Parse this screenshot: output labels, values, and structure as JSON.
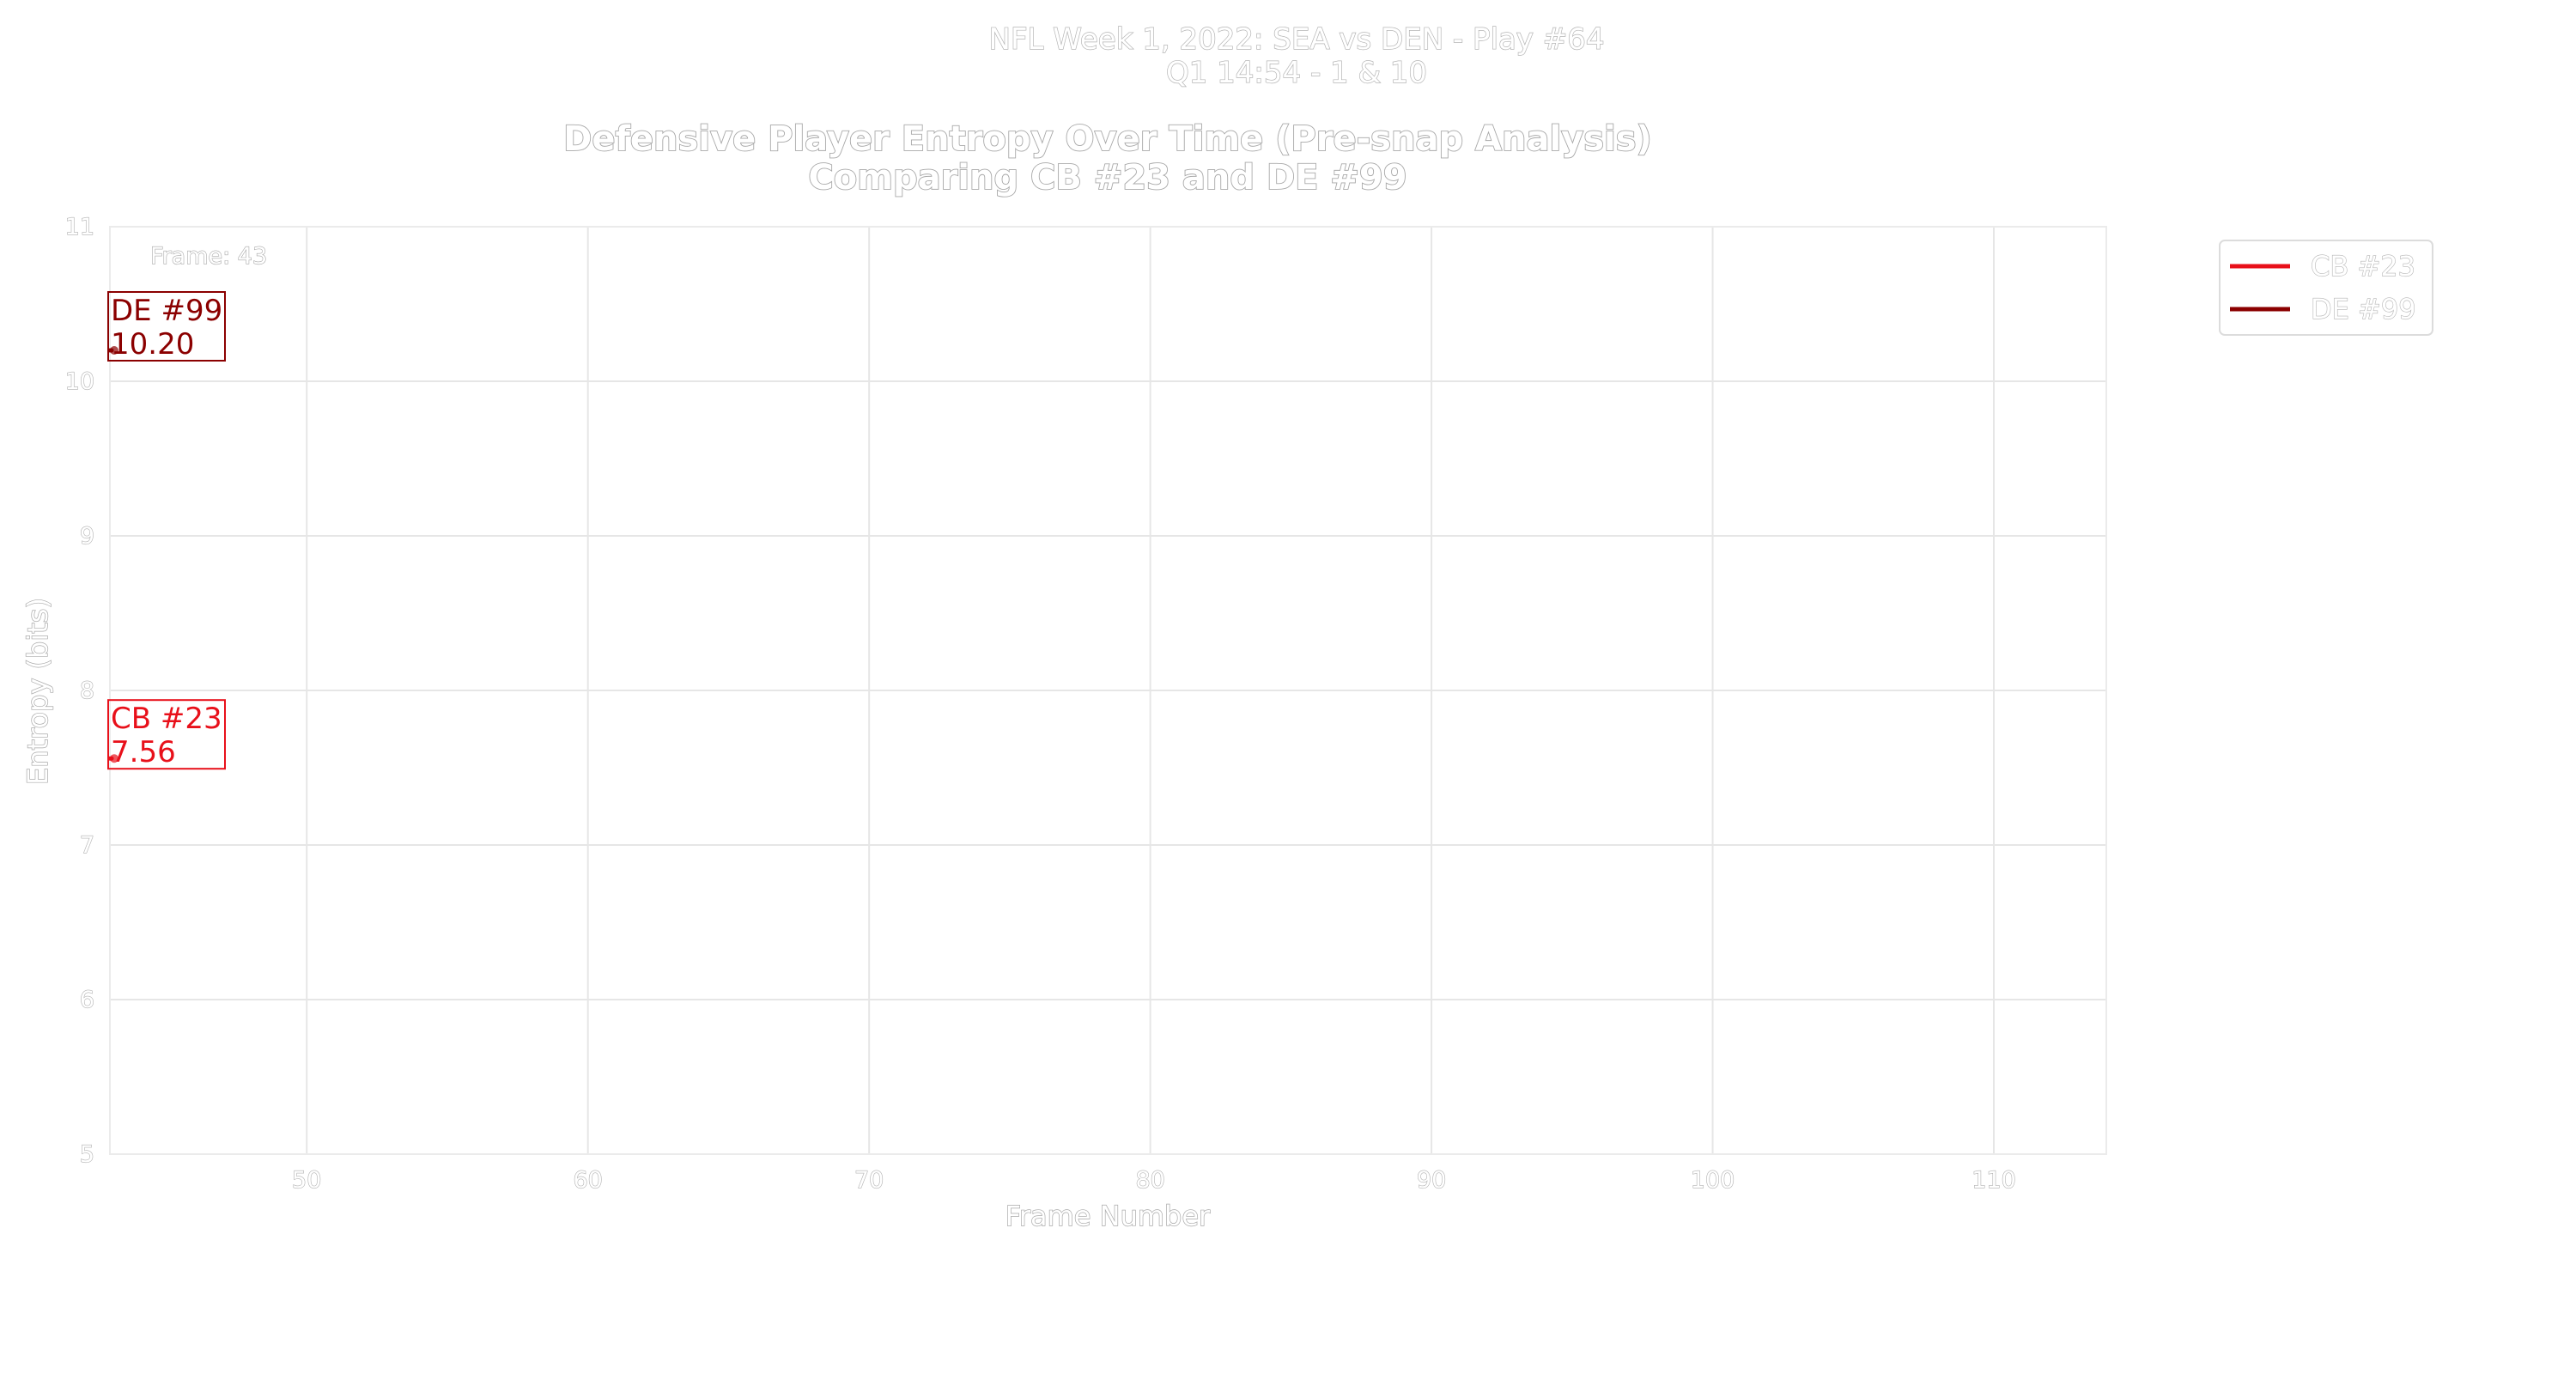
{
  "suptitle": {
    "line1": "NFL Week 1, 2022: SEA vs DEN - Play #64",
    "line2": "Q1 14:54 - 1 & 10"
  },
  "colors": {
    "cb23": "#e8101a",
    "de99": "#8b0000",
    "background": "#ffffff"
  },
  "chart_data": {
    "type": "line",
    "title": "Defensive Player Entropy Over Time (Pre-snap Analysis)",
    "subtitle": "Comparing CB #23 and DE #99",
    "xlabel": "Frame Number",
    "ylabel": "Entropy (bits)",
    "xlim": [
      43,
      114
    ],
    "ylim": [
      5,
      11
    ],
    "xticks": [
      50,
      60,
      70,
      80,
      90,
      100,
      110
    ],
    "yticks": [
      5,
      6,
      7,
      8,
      9,
      10,
      11
    ],
    "grid": true,
    "legend_position": "outside-top-right",
    "frame_annotation": "Frame: 43",
    "series": [
      {
        "name": "CB #23",
        "color": "#e8101a",
        "x": [
          43
        ],
        "y": [
          7.56
        ],
        "callout": [
          "CB #23",
          "7.56"
        ]
      },
      {
        "name": "DE #99",
        "color": "#8b0000",
        "x": [
          43
        ],
        "y": [
          10.2
        ],
        "callout": [
          "DE #99",
          "10.20"
        ]
      }
    ]
  }
}
